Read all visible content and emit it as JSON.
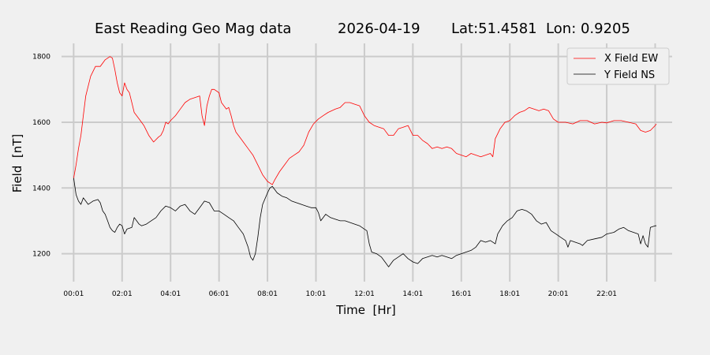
{
  "chart_data": {
    "type": "line",
    "title": {
      "text": "East Reading Geo Mag data",
      "date": "2026-04-19",
      "location": "Lat:51.4581  Lon: 0.9205"
    },
    "xlabel": "Time  [Hr]",
    "ylabel": "Field  [nT]",
    "xlim": [
      -0.5,
      24.7
    ],
    "ylim": [
      1115,
      1840
    ],
    "x_ticks": [
      {
        "hour": 0,
        "label": "00:01"
      },
      {
        "hour": 2,
        "label": "02:01"
      },
      {
        "hour": 4,
        "label": "04:01"
      },
      {
        "hour": 6,
        "label": "06:01"
      },
      {
        "hour": 8,
        "label": "08:01"
      },
      {
        "hour": 10,
        "label": "10:01"
      },
      {
        "hour": 12,
        "label": "12:01"
      },
      {
        "hour": 14,
        "label": "14:01"
      },
      {
        "hour": 16,
        "label": "16:01"
      },
      {
        "hour": 18,
        "label": "18:01"
      },
      {
        "hour": 20,
        "label": "20:01"
      },
      {
        "hour": 22,
        "label": "22:01"
      },
      {
        "hour": 24,
        "label": ""
      }
    ],
    "y_ticks": [
      {
        "value": 1200,
        "label": "1200"
      },
      {
        "value": 1400,
        "label": "1400"
      },
      {
        "value": 1600,
        "label": "1600"
      },
      {
        "value": 1800,
        "label": "1800"
      }
    ],
    "grid": true,
    "legend_position": "top-right",
    "series": [
      {
        "name": "X Field EW",
        "color": "#ff0000",
        "points": [
          [
            0.0,
            1430
          ],
          [
            0.1,
            1470
          ],
          [
            0.2,
            1520
          ],
          [
            0.3,
            1560
          ],
          [
            0.4,
            1620
          ],
          [
            0.5,
            1680
          ],
          [
            0.7,
            1740
          ],
          [
            0.9,
            1770
          ],
          [
            1.1,
            1770
          ],
          [
            1.3,
            1790
          ],
          [
            1.5,
            1800
          ],
          [
            1.6,
            1795
          ],
          [
            1.7,
            1760
          ],
          [
            1.8,
            1720
          ],
          [
            1.9,
            1690
          ],
          [
            2.0,
            1680
          ],
          [
            2.1,
            1720
          ],
          [
            2.2,
            1700
          ],
          [
            2.3,
            1690
          ],
          [
            2.4,
            1660
          ],
          [
            2.5,
            1630
          ],
          [
            2.7,
            1610
          ],
          [
            2.9,
            1590
          ],
          [
            3.1,
            1560
          ],
          [
            3.3,
            1540
          ],
          [
            3.5,
            1555
          ],
          [
            3.6,
            1560
          ],
          [
            3.7,
            1575
          ],
          [
            3.8,
            1600
          ],
          [
            3.9,
            1595
          ],
          [
            4.0,
            1605
          ],
          [
            4.2,
            1620
          ],
          [
            4.4,
            1640
          ],
          [
            4.6,
            1660
          ],
          [
            4.8,
            1670
          ],
          [
            5.0,
            1675
          ],
          [
            5.2,
            1680
          ],
          [
            5.3,
            1620
          ],
          [
            5.4,
            1590
          ],
          [
            5.5,
            1650
          ],
          [
            5.6,
            1680
          ],
          [
            5.7,
            1700
          ],
          [
            5.8,
            1700
          ],
          [
            6.0,
            1690
          ],
          [
            6.1,
            1660
          ],
          [
            6.3,
            1640
          ],
          [
            6.4,
            1645
          ],
          [
            6.5,
            1620
          ],
          [
            6.6,
            1590
          ],
          [
            6.7,
            1570
          ],
          [
            6.9,
            1550
          ],
          [
            7.0,
            1540
          ],
          [
            7.2,
            1520
          ],
          [
            7.4,
            1500
          ],
          [
            7.6,
            1470
          ],
          [
            7.8,
            1440
          ],
          [
            8.0,
            1420
          ],
          [
            8.2,
            1410
          ],
          [
            8.3,
            1425
          ],
          [
            8.5,
            1450
          ],
          [
            8.7,
            1470
          ],
          [
            8.9,
            1490
          ],
          [
            9.1,
            1500
          ],
          [
            9.3,
            1510
          ],
          [
            9.5,
            1530
          ],
          [
            9.7,
            1570
          ],
          [
            9.9,
            1595
          ],
          [
            10.1,
            1610
          ],
          [
            10.3,
            1620
          ],
          [
            10.5,
            1630
          ],
          [
            10.8,
            1640
          ],
          [
            11.0,
            1645
          ],
          [
            11.2,
            1660
          ],
          [
            11.4,
            1660
          ],
          [
            11.6,
            1655
          ],
          [
            11.8,
            1650
          ],
          [
            12.0,
            1620
          ],
          [
            12.2,
            1600
          ],
          [
            12.4,
            1590
          ],
          [
            12.6,
            1585
          ],
          [
            12.8,
            1580
          ],
          [
            13.0,
            1560
          ],
          [
            13.2,
            1560
          ],
          [
            13.4,
            1580
          ],
          [
            13.6,
            1585
          ],
          [
            13.8,
            1590
          ],
          [
            14.0,
            1560
          ],
          [
            14.2,
            1560
          ],
          [
            14.4,
            1545
          ],
          [
            14.6,
            1535
          ],
          [
            14.8,
            1520
          ],
          [
            15.0,
            1525
          ],
          [
            15.2,
            1520
          ],
          [
            15.4,
            1525
          ],
          [
            15.6,
            1520
          ],
          [
            15.8,
            1505
          ],
          [
            16.0,
            1500
          ],
          [
            16.2,
            1495
          ],
          [
            16.4,
            1505
          ],
          [
            16.6,
            1500
          ],
          [
            16.8,
            1495
          ],
          [
            17.0,
            1500
          ],
          [
            17.2,
            1505
          ],
          [
            17.3,
            1495
          ],
          [
            17.4,
            1550
          ],
          [
            17.6,
            1580
          ],
          [
            17.8,
            1600
          ],
          [
            18.0,
            1605
          ],
          [
            18.2,
            1620
          ],
          [
            18.4,
            1630
          ],
          [
            18.6,
            1635
          ],
          [
            18.8,
            1645
          ],
          [
            19.0,
            1640
          ],
          [
            19.2,
            1635
          ],
          [
            19.4,
            1640
          ],
          [
            19.6,
            1635
          ],
          [
            19.8,
            1610
          ],
          [
            20.0,
            1600
          ],
          [
            20.3,
            1600
          ],
          [
            20.6,
            1595
          ],
          [
            20.9,
            1605
          ],
          [
            21.2,
            1605
          ],
          [
            21.5,
            1595
          ],
          [
            21.8,
            1600
          ],
          [
            22.0,
            1598
          ],
          [
            22.3,
            1605
          ],
          [
            22.6,
            1605
          ],
          [
            22.9,
            1600
          ],
          [
            23.2,
            1595
          ],
          [
            23.4,
            1575
          ],
          [
            23.6,
            1570
          ],
          [
            23.8,
            1575
          ],
          [
            24.0,
            1590
          ],
          [
            24.05,
            1595
          ]
        ]
      },
      {
        "name": "Y Field NS",
        "color": "#000000",
        "points": [
          [
            0.0,
            1430
          ],
          [
            0.1,
            1380
          ],
          [
            0.2,
            1360
          ],
          [
            0.3,
            1350
          ],
          [
            0.4,
            1370
          ],
          [
            0.5,
            1360
          ],
          [
            0.6,
            1350
          ],
          [
            0.8,
            1360
          ],
          [
            1.0,
            1365
          ],
          [
            1.1,
            1355
          ],
          [
            1.2,
            1330
          ],
          [
            1.3,
            1320
          ],
          [
            1.4,
            1300
          ],
          [
            1.5,
            1280
          ],
          [
            1.6,
            1270
          ],
          [
            1.7,
            1265
          ],
          [
            1.8,
            1280
          ],
          [
            1.9,
            1290
          ],
          [
            2.0,
            1285
          ],
          [
            2.1,
            1260
          ],
          [
            2.2,
            1275
          ],
          [
            2.4,
            1280
          ],
          [
            2.5,
            1310
          ],
          [
            2.6,
            1300
          ],
          [
            2.7,
            1290
          ],
          [
            2.8,
            1285
          ],
          [
            3.0,
            1290
          ],
          [
            3.2,
            1300
          ],
          [
            3.4,
            1310
          ],
          [
            3.6,
            1330
          ],
          [
            3.8,
            1345
          ],
          [
            4.0,
            1340
          ],
          [
            4.2,
            1330
          ],
          [
            4.4,
            1345
          ],
          [
            4.6,
            1350
          ],
          [
            4.8,
            1330
          ],
          [
            5.0,
            1320
          ],
          [
            5.2,
            1340
          ],
          [
            5.4,
            1360
          ],
          [
            5.6,
            1355
          ],
          [
            5.8,
            1330
          ],
          [
            6.0,
            1330
          ],
          [
            6.2,
            1320
          ],
          [
            6.4,
            1310
          ],
          [
            6.6,
            1300
          ],
          [
            6.8,
            1280
          ],
          [
            7.0,
            1260
          ],
          [
            7.2,
            1220
          ],
          [
            7.3,
            1190
          ],
          [
            7.4,
            1180
          ],
          [
            7.5,
            1200
          ],
          [
            7.6,
            1250
          ],
          [
            7.7,
            1310
          ],
          [
            7.8,
            1350
          ],
          [
            8.0,
            1385
          ],
          [
            8.1,
            1400
          ],
          [
            8.2,
            1405
          ],
          [
            8.3,
            1395
          ],
          [
            8.4,
            1385
          ],
          [
            8.6,
            1375
          ],
          [
            8.8,
            1370
          ],
          [
            9.0,
            1360
          ],
          [
            9.2,
            1355
          ],
          [
            9.4,
            1350
          ],
          [
            9.6,
            1345
          ],
          [
            9.8,
            1340
          ],
          [
            10.0,
            1340
          ],
          [
            10.1,
            1325
          ],
          [
            10.2,
            1300
          ],
          [
            10.4,
            1320
          ],
          [
            10.6,
            1310
          ],
          [
            10.8,
            1305
          ],
          [
            11.0,
            1300
          ],
          [
            11.2,
            1300
          ],
          [
            11.4,
            1295
          ],
          [
            11.6,
            1290
          ],
          [
            11.8,
            1285
          ],
          [
            12.0,
            1275
          ],
          [
            12.1,
            1270
          ],
          [
            12.2,
            1230
          ],
          [
            12.3,
            1205
          ],
          [
            12.5,
            1200
          ],
          [
            12.7,
            1190
          ],
          [
            12.9,
            1170
          ],
          [
            13.0,
            1160
          ],
          [
            13.2,
            1180
          ],
          [
            13.4,
            1190
          ],
          [
            13.6,
            1200
          ],
          [
            13.8,
            1185
          ],
          [
            14.0,
            1175
          ],
          [
            14.2,
            1170
          ],
          [
            14.4,
            1185
          ],
          [
            14.6,
            1190
          ],
          [
            14.8,
            1195
          ],
          [
            15.0,
            1190
          ],
          [
            15.2,
            1195
          ],
          [
            15.4,
            1190
          ],
          [
            15.6,
            1185
          ],
          [
            15.8,
            1195
          ],
          [
            16.0,
            1200
          ],
          [
            16.2,
            1205
          ],
          [
            16.4,
            1210
          ],
          [
            16.6,
            1220
          ],
          [
            16.8,
            1240
          ],
          [
            17.0,
            1235
          ],
          [
            17.2,
            1240
          ],
          [
            17.4,
            1230
          ],
          [
            17.5,
            1260
          ],
          [
            17.7,
            1285
          ],
          [
            17.9,
            1300
          ],
          [
            18.1,
            1310
          ],
          [
            18.3,
            1330
          ],
          [
            18.5,
            1335
          ],
          [
            18.7,
            1330
          ],
          [
            18.9,
            1320
          ],
          [
            19.1,
            1300
          ],
          [
            19.3,
            1290
          ],
          [
            19.5,
            1295
          ],
          [
            19.7,
            1270
          ],
          [
            19.9,
            1260
          ],
          [
            20.1,
            1250
          ],
          [
            20.3,
            1240
          ],
          [
            20.4,
            1220
          ],
          [
            20.5,
            1240
          ],
          [
            20.7,
            1235
          ],
          [
            20.9,
            1230
          ],
          [
            21.0,
            1225
          ],
          [
            21.2,
            1240
          ],
          [
            21.5,
            1245
          ],
          [
            21.8,
            1250
          ],
          [
            22.0,
            1260
          ],
          [
            22.3,
            1265
          ],
          [
            22.5,
            1275
          ],
          [
            22.7,
            1280
          ],
          [
            22.9,
            1270
          ],
          [
            23.1,
            1265
          ],
          [
            23.3,
            1260
          ],
          [
            23.4,
            1230
          ],
          [
            23.5,
            1255
          ],
          [
            23.6,
            1230
          ],
          [
            23.7,
            1220
          ],
          [
            23.8,
            1280
          ],
          [
            24.0,
            1285
          ],
          [
            24.05,
            1285
          ]
        ]
      }
    ]
  }
}
